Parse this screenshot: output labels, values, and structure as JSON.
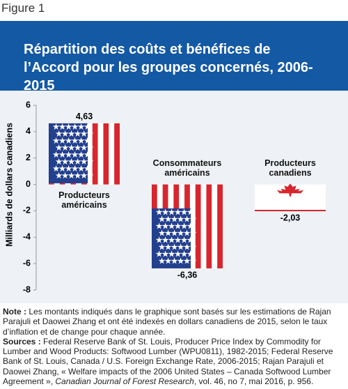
{
  "figure_label": "Figure 1",
  "chart_data": {
    "type": "bar",
    "title": "Répartition des coûts et bénéfices de l’Accord pour les groupes concernés, 2006-2015",
    "y_label": "Milliards de dollars canadiens",
    "categories": [
      "Producteurs américains",
      "Consommateurs américains",
      "Producteurs canadiens"
    ],
    "values": [
      4.63,
      -6.36,
      -2.03
    ],
    "value_labels": [
      "4,63",
      "-6,36",
      "-2,03"
    ],
    "ylim": [
      -8,
      6
    ],
    "yticks": [
      6,
      4,
      2,
      0,
      -2,
      -4,
      -6,
      -8
    ]
  },
  "notes": {
    "note_label": "Note :",
    "note_text": "Les montants indiqués dans le graphique sont basés sur les estimations de Rajan Parajuli et Daowei Zhang et ont été indexés en dollars canadiens de 2015, selon le taux d’inflation et de change pour chaque année.",
    "sources_label": "Sources :",
    "sources_text": "Federal Reserve Bank of St. Louis, Producer Price Index by Commodity for Lumber and Wood Products: Softwood Lumber (WPU0811), 1982-2015; Federal Reserve Bank of St. Louis, Canada / U.S. Foreign Exchange Rate, 2006-2015; Rajan Parajuli et Daowei Zhang, « Welfare impacts of the 2006 United States – Canada Softwood Lumber Agreement », ",
    "sources_journal": "Canadian Journal of Forest Research",
    "sources_end": ", vol. 46, no 7, mai 2016, p. 956."
  }
}
